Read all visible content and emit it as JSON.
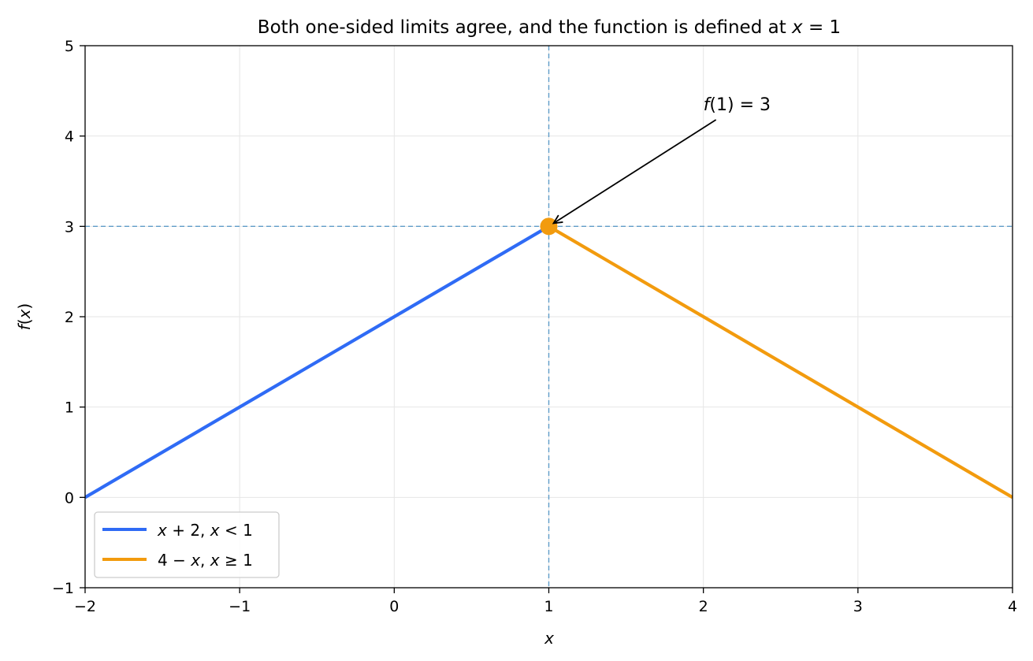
{
  "chart_data": {
    "type": "line",
    "title_parts": [
      "Both one-sided limits agree, and the function is defined at ",
      "x",
      " = 1"
    ],
    "xlabel": "x",
    "ylabel_parts": [
      "f",
      "(",
      "x",
      ")"
    ],
    "xlim": [
      -2,
      4
    ],
    "ylim": [
      -1,
      5
    ],
    "x_ticks": [
      -2,
      -1,
      0,
      1,
      2,
      3,
      4
    ],
    "y_ticks": [
      -1,
      0,
      1,
      2,
      3,
      4,
      5
    ],
    "x_tick_labels": [
      "−2",
      "−1",
      "0",
      "1",
      "2",
      "3",
      "4"
    ],
    "y_tick_labels": [
      "−1",
      "0",
      "1",
      "2",
      "3",
      "4",
      "5"
    ],
    "grid": true,
    "legend_position": "lower-left",
    "series": [
      {
        "id": "left",
        "name_parts": [
          "x",
          " + 2,  ",
          "x",
          " < 1"
        ],
        "color": "#2f6bf5",
        "points": [
          [
            -2,
            0
          ],
          [
            1,
            3
          ]
        ]
      },
      {
        "id": "right",
        "name_parts": [
          "4 − ",
          "x",
          ",  ",
          "x",
          " ≥ 1"
        ],
        "color": "#f29b0e",
        "points": [
          [
            1,
            3
          ],
          [
            4,
            0
          ]
        ]
      }
    ],
    "point": {
      "x": 1,
      "y": 3,
      "color": "#f29b0e"
    },
    "reference_lines": {
      "x": 1,
      "y": 3,
      "color": "#5f9cc8"
    },
    "annotation": {
      "text_parts": [
        "f",
        "(1) = 3"
      ],
      "text_x": 2.0,
      "text_y": 4.25,
      "arrow_to": [
        1,
        3
      ]
    }
  }
}
